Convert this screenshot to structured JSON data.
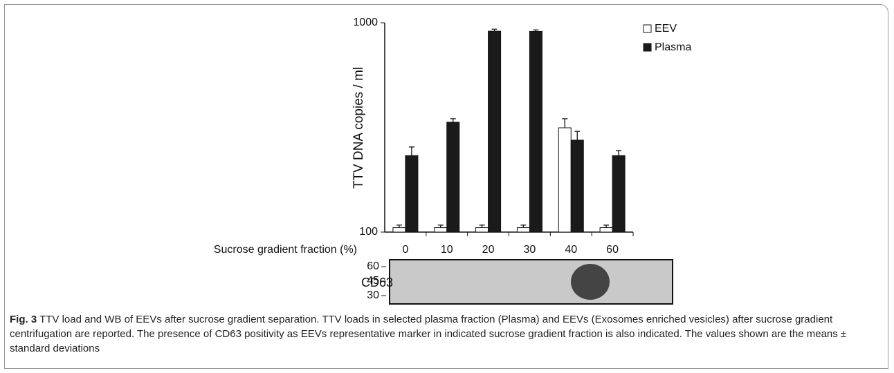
{
  "chart_data": {
    "type": "bar",
    "log": true,
    "xlabel": "Sucrose gradient fraction (%)",
    "ylabel": "TTV DNA copies / ml",
    "categories": [
      "0",
      "10",
      "20",
      "30",
      "40",
      "60"
    ],
    "series": [
      {
        "name": "EEV",
        "color": "#ffffff",
        "values": [
          105,
          105,
          105,
          105,
          315,
          105
        ],
        "errors": [
          3,
          3,
          3,
          3,
          33,
          3
        ]
      },
      {
        "name": "Plasma",
        "color": "#1a1a1a",
        "values": [
          232,
          335,
          912,
          910,
          275,
          232
        ],
        "errors": [
          23,
          13,
          20,
          15,
          28,
          13
        ]
      }
    ],
    "ylim": [
      100,
      1000
    ],
    "yticks": [
      100,
      1000
    ],
    "legend": "top-right"
  },
  "blot": {
    "label": "CD63",
    "markers": [
      60,
      45,
      30
    ]
  },
  "caption": {
    "label": "Fig. 3",
    "text": "TTV load and WB of EEVs after sucrose gradient separation. TTV loads in selected plasma fraction (Plasma) and EEVs (Exosomes enriched vesicles) after sucrose gradient centrifugation are reported. The presence of CD63 positivity as EEVs representative marker in indicated sucrose gradient fraction is also indicated. The values shown are the means ± standard deviations"
  }
}
